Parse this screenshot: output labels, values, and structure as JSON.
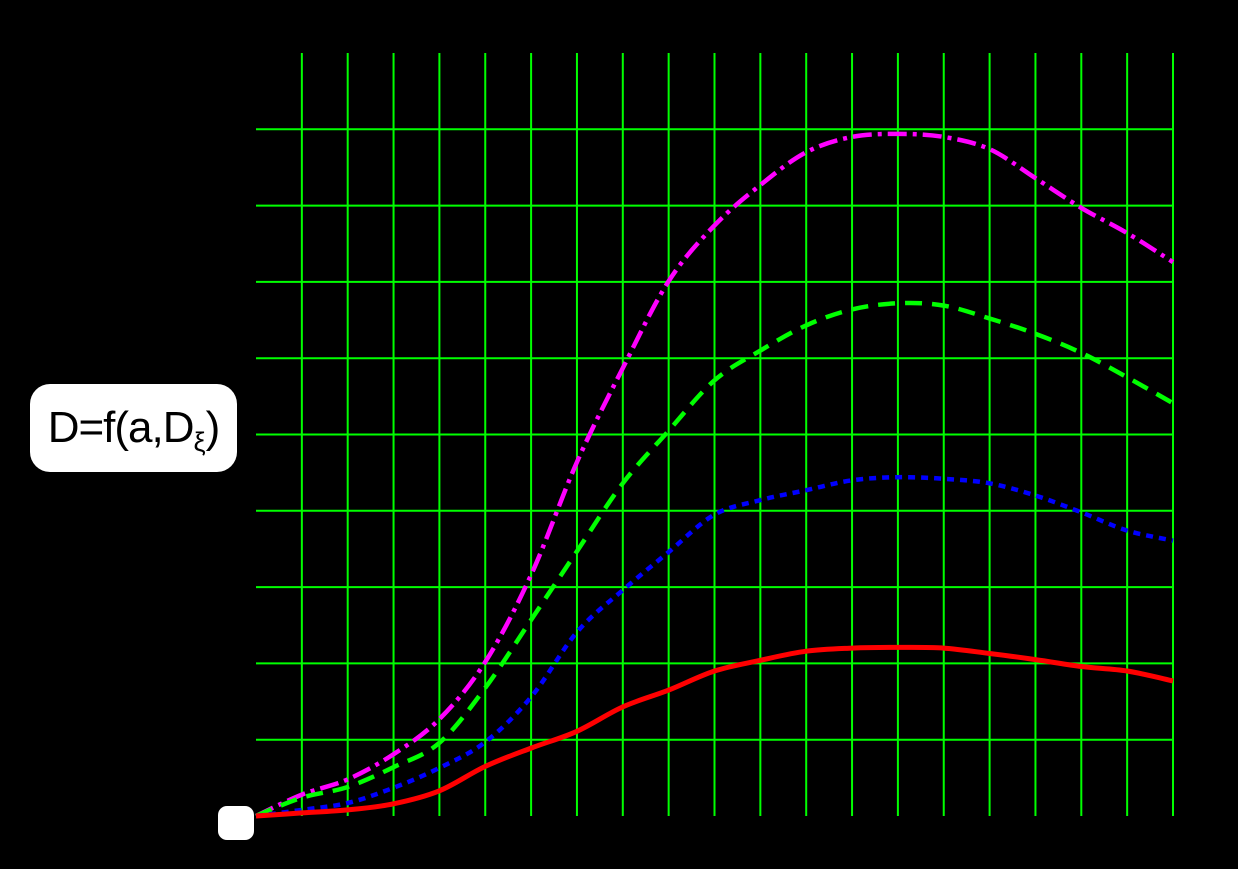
{
  "annotation": {
    "label_prefix": "D=f(a,D",
    "label_subscript": "ξ",
    "label_suffix": ")"
  },
  "colors": {
    "background": "#000000",
    "grid": "#00ff00",
    "label_box": "#ffffff",
    "label_text": "#000000"
  },
  "chart_data": {
    "type": "line",
    "title": "",
    "xlabel": "",
    "ylabel": "",
    "xlim": [
      0,
      20
    ],
    "ylim": [
      0,
      1.0
    ],
    "grid": true,
    "grid_color": "#00ff00",
    "x_gridline_step": 1,
    "y_gridline_step": 0.1,
    "legend": "none",
    "x": [
      0,
      1,
      2,
      3,
      4,
      5,
      6,
      7,
      8,
      9,
      10,
      11,
      12,
      13,
      14,
      15,
      16,
      17,
      18,
      19,
      20
    ],
    "series": [
      {
        "name": "curve-magenta",
        "color": "#ff00ff",
        "style": "dash-dot",
        "dash": "19 6 4 6",
        "width": 4.5,
        "values": [
          0,
          0.028,
          0.048,
          0.081,
          0.127,
          0.202,
          0.316,
          0.464,
          0.587,
          0.701,
          0.774,
          0.827,
          0.87,
          0.89,
          0.894,
          0.89,
          0.874,
          0.836,
          0.797,
          0.764,
          0.726
        ]
      },
      {
        "name": "curve-green",
        "color": "#00ff00",
        "style": "dashed",
        "dash": "17 10",
        "width": 4.5,
        "values": [
          0,
          0.024,
          0.038,
          0.064,
          0.096,
          0.168,
          0.257,
          0.347,
          0.436,
          0.505,
          0.571,
          0.61,
          0.643,
          0.664,
          0.672,
          0.669,
          0.652,
          0.632,
          0.607,
          0.575,
          0.541
        ]
      },
      {
        "name": "curve-blue",
        "color": "#0000ff",
        "style": "dotted",
        "dash": "7 6",
        "width": 4.5,
        "values": [
          0,
          0.008,
          0.017,
          0.037,
          0.063,
          0.097,
          0.156,
          0.241,
          0.296,
          0.346,
          0.395,
          0.414,
          0.427,
          0.44,
          0.444,
          0.442,
          0.436,
          0.42,
          0.398,
          0.374,
          0.361
        ]
      },
      {
        "name": "curve-red",
        "color": "#ff0000",
        "style": "solid",
        "dash": "",
        "width": 5,
        "values": [
          0,
          0.004,
          0.008,
          0.016,
          0.033,
          0.065,
          0.089,
          0.111,
          0.143,
          0.165,
          0.19,
          0.204,
          0.216,
          0.22,
          0.221,
          0.22,
          0.213,
          0.205,
          0.196,
          0.19,
          0.177
        ]
      }
    ]
  }
}
